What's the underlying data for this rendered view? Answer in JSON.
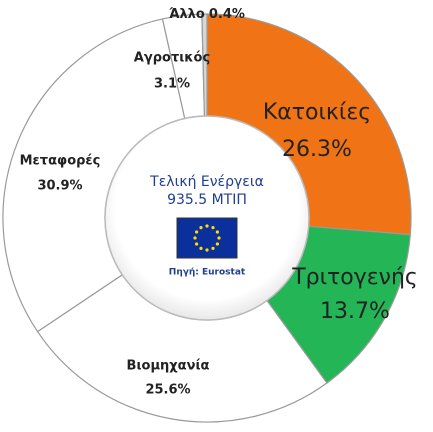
{
  "chart_data": {
    "type": "pie",
    "donut": true,
    "title": "Τελική Ενέργεια",
    "subtitle": "935.5 ΜΤΙΠ",
    "annotation": "Πηγή: Eurostat",
    "categories": [
      "Κατοικίες",
      "Τριτογενής",
      "Βιομηχανία",
      "Μεταφορές",
      "Αγροτικός",
      "Άλλο"
    ],
    "values": [
      26.3,
      13.7,
      25.6,
      30.9,
      3.1,
      0.4
    ],
    "value_labels": [
      "26.3%",
      "13.7%",
      "25.6%",
      "30.9%",
      "3.1%",
      "0.4%"
    ],
    "colors": [
      "#f07415",
      "#23b556",
      "#ffffff",
      "#ffffff",
      "#ffffff",
      "#d6d6d6"
    ]
  }
}
